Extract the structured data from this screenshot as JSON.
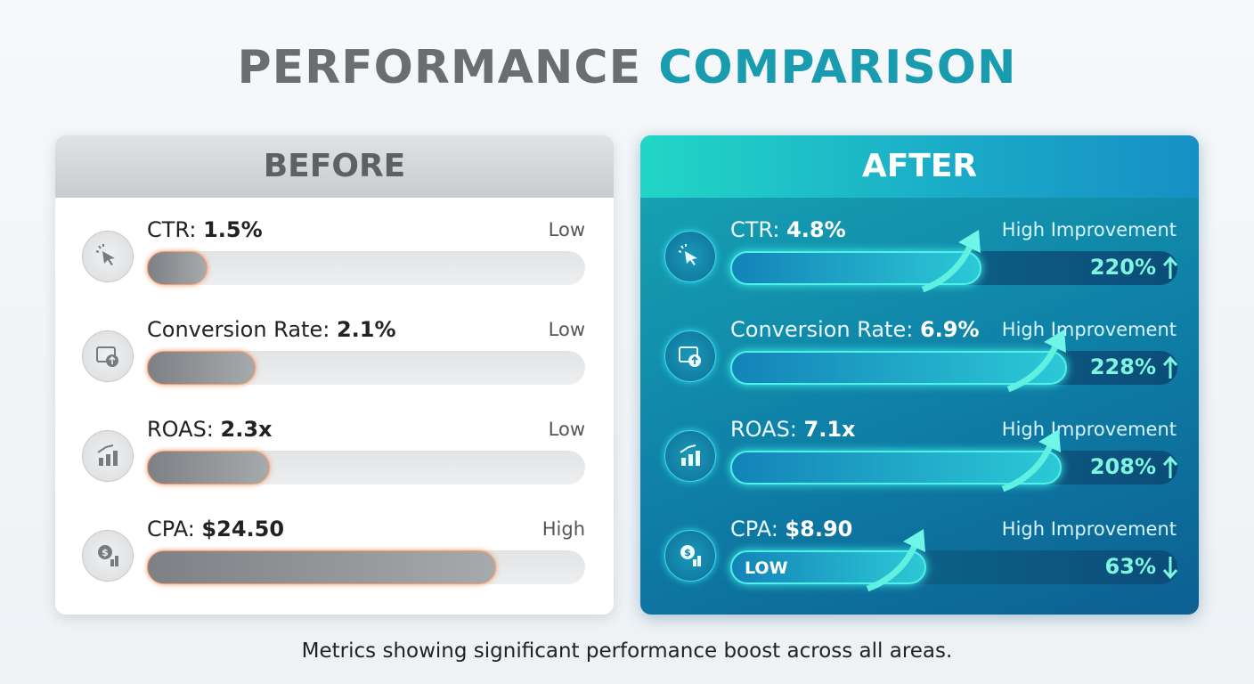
{
  "title": {
    "first": "PERFORMANCE",
    "second": "COMPARISON"
  },
  "before": {
    "heading": "BEFORE",
    "rows": [
      {
        "label": "CTR:",
        "value": "1.5%",
        "level": "Low"
      },
      {
        "label": "Conversion Rate:",
        "value": "2.1%",
        "level": "Low"
      },
      {
        "label": "ROAS:",
        "value": "2.3x",
        "level": "Low"
      },
      {
        "label": "CPA:",
        "value": "$24.50",
        "level": "High"
      }
    ]
  },
  "after": {
    "heading": "AFTER",
    "rows": [
      {
        "label": "CTR:",
        "value": "4.8%",
        "status": "High Improvement",
        "change": "220%"
      },
      {
        "label": "Conversion Rate:",
        "value": "6.9%",
        "status": "High Improvement",
        "change": "228%"
      },
      {
        "label": "ROAS:",
        "value": "7.1x",
        "status": "High Improvement",
        "change": "208%"
      },
      {
        "label": "CPA:",
        "value": "$8.90",
        "status": "High Improvement",
        "change": "63%",
        "badge": "LOW"
      }
    ]
  },
  "caption": "Metrics showing significant performance boost across all areas."
}
